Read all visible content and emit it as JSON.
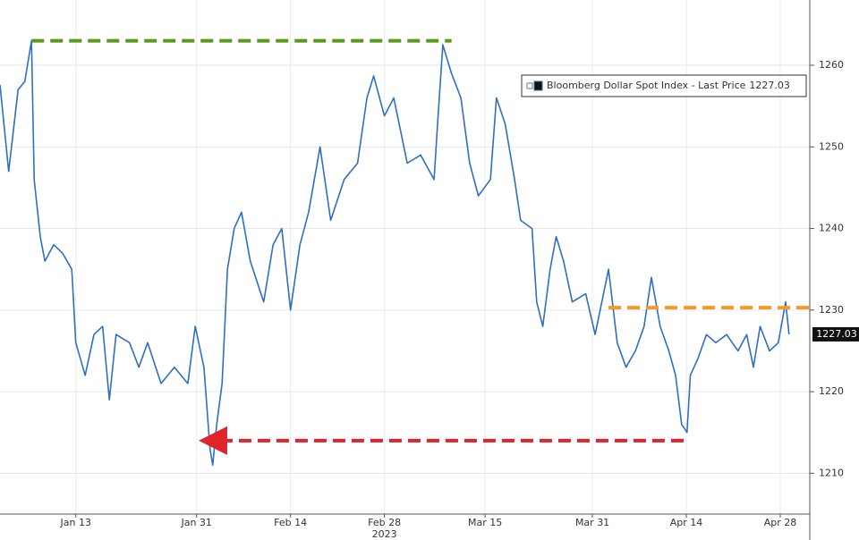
{
  "chart_data": {
    "type": "line",
    "x": [
      1.7,
      3.0,
      4.4,
      5.4,
      6.4,
      6.8,
      7.7,
      8.4,
      9.7,
      11.0,
      12.4,
      13.0,
      14.4,
      15.7,
      17.0,
      18.0,
      19.0,
      21.0,
      22.4,
      23.7,
      25.7,
      27.7,
      29.7,
      30.8,
      32.1,
      33.0,
      33.4,
      34.0,
      34.8,
      35.6,
      36.6,
      37.7,
      39.0,
      41.0,
      42.4,
      43.7,
      45.0,
      46.4,
      47.7,
      49.4,
      51.0,
      53.0,
      55.0,
      56.4,
      57.4,
      59.0,
      60.4,
      62.4,
      64.4,
      66.4,
      67.0,
      67.7,
      69.0,
      70.4,
      71.7,
      73.0,
      74.8,
      75.7,
      77.0,
      78.4,
      79.3,
      81.0,
      81.7,
      82.6,
      83.7,
      84.6,
      85.7,
      87.0,
      89.0,
      90.4,
      92.4,
      93.7,
      95.0,
      96.4,
      97.7,
      98.8,
      100.1,
      101.4,
      102.4,
      103.3,
      104.1,
      104.6,
      105.7,
      107.0,
      108.4,
      110.0,
      111.7,
      113.0,
      114.0,
      115.0,
      116.4,
      117.7,
      118.8,
      119.3
    ],
    "series": [
      {
        "name": "Bloomberg Dollar Spot Index - Last Price",
        "color": "#2f6fbf",
        "values": [
          1257.6,
          1247,
          1257,
          1258,
          1263,
          1246,
          1239,
          1236,
          1238,
          1237,
          1235,
          1226,
          1222,
          1227,
          1228,
          1219,
          1227,
          1226,
          1223,
          1226,
          1221,
          1223,
          1221,
          1228,
          1223,
          1213,
          1211,
          1216,
          1221,
          1235,
          1240,
          1242,
          1236,
          1231,
          1238,
          1240,
          1230,
          1238,
          1242,
          1250,
          1241,
          1246,
          1248,
          1256,
          1258.7,
          1253.8,
          1256,
          1248,
          1249,
          1246,
          1253.8,
          1262.5,
          1259,
          1256,
          1248,
          1244,
          1246,
          1256,
          1252.8,
          1246,
          1241,
          1240,
          1231,
          1228,
          1235,
          1239,
          1236,
          1231,
          1232,
          1227,
          1235,
          1226,
          1223,
          1225,
          1228,
          1234,
          1228,
          1225,
          1222,
          1216,
          1215,
          1222,
          1224,
          1227,
          1226,
          1227,
          1225,
          1227,
          1223,
          1228,
          1225,
          1226,
          1231,
          1227.03
        ]
      }
    ],
    "last_price": 1227.03,
    "xlim": [
      1.7,
      122.4
    ],
    "xticks": [
      {
        "value": 13,
        "label": "Jan 13"
      },
      {
        "value": 31,
        "label": "Jan 31"
      },
      {
        "value": 45,
        "label": "Feb 14"
      },
      {
        "value": 59,
        "label": "Feb 28"
      },
      {
        "value": 74,
        "label": "Mar 15"
      },
      {
        "value": 90,
        "label": "Mar 31"
      },
      {
        "value": 104,
        "label": "Apr 14"
      },
      {
        "value": 118,
        "label": "Apr 28"
      }
    ],
    "year_label": {
      "value": 59,
      "label": "2023"
    },
    "ylim": [
      1205,
      1268
    ],
    "yticks": [
      1210,
      1220,
      1230,
      1240,
      1250,
      1260
    ],
    "grid": true,
    "legend": "top right",
    "annotations": [
      {
        "y": 1263,
        "x_start": 6.4,
        "x_end": 69,
        "color": "#5a9a1a",
        "arrow": false
      },
      {
        "y": 1214,
        "x_start": 34.5,
        "x_end": 104.1,
        "color": "#e0242b",
        "arrow": true
      },
      {
        "y": 1230.3,
        "x_start": 92.4,
        "x_end": 122.4,
        "color": "#f39a2a",
        "arrow": false
      }
    ]
  }
}
